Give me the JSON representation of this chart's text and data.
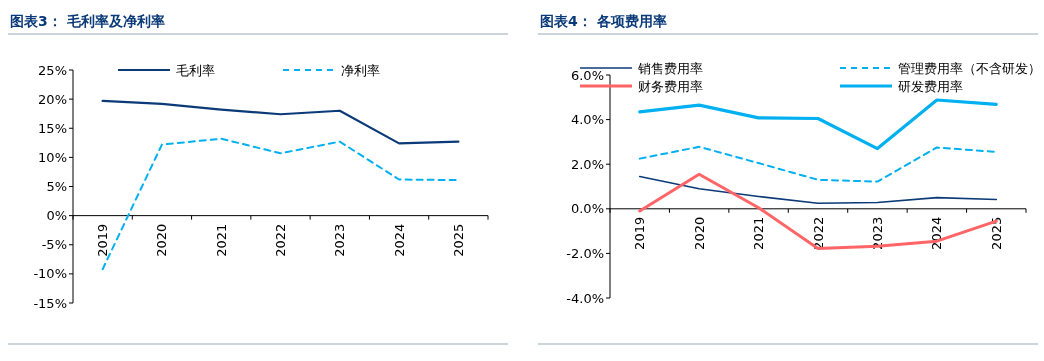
{
  "chart_data": [
    {
      "type": "line",
      "title": "图表3：  毛利率及净利率",
      "categories": [
        "2019",
        "2020",
        "2021",
        "2022",
        "2023",
        "2024",
        "2025"
      ],
      "ylim": [
        -15,
        25
      ],
      "yticks": [
        {
          "value": -15,
          "label": "-15%"
        },
        {
          "value": -10,
          "label": "-10%"
        },
        {
          "value": -5,
          "label": "-5%"
        },
        {
          "value": 0,
          "label": "0%"
        },
        {
          "value": 5,
          "label": "5%"
        },
        {
          "value": 10,
          "label": "10%"
        },
        {
          "value": 15,
          "label": "15%"
        },
        {
          "value": 20,
          "label": "20%"
        },
        {
          "value": 25,
          "label": "25%"
        }
      ],
      "legend": "top",
      "grid": false,
      "series": [
        {
          "name": "毛利率",
          "color": "#0b3a78",
          "line_style": "solid",
          "values": [
            19.7,
            19.2,
            18.2,
            17.4,
            18.0,
            12.4,
            12.7
          ]
        },
        {
          "name": "净利率",
          "color": "#00b0f0",
          "line_style": "dashed",
          "values": [
            -9.2,
            12.2,
            13.2,
            10.7,
            12.7,
            6.2,
            6.1
          ]
        }
      ]
    },
    {
      "type": "line",
      "title": "图表4：  各项费用率",
      "categories": [
        "2019",
        "2020",
        "2021",
        "2022",
        "2023",
        "2024",
        "2025"
      ],
      "ylim": [
        -4,
        6
      ],
      "yticks": [
        {
          "value": -4,
          "label": "-4.0%"
        },
        {
          "value": -2,
          "label": "-2.0%"
        },
        {
          "value": 0,
          "label": "0.0%"
        },
        {
          "value": 2,
          "label": "2.0%"
        },
        {
          "value": 4,
          "label": "4.0%"
        },
        {
          "value": 6,
          "label": "6.0%"
        }
      ],
      "legend": "top",
      "grid": false,
      "series": [
        {
          "name": "销售费用率",
          "color": "#0b3a78",
          "line_style": "solid",
          "values": [
            1.45,
            0.9,
            0.55,
            0.25,
            0.28,
            0.5,
            0.42
          ]
        },
        {
          "name": "管理费用率（不含研发）",
          "color": "#00b0f0",
          "line_style": "dashed",
          "values": [
            2.25,
            2.78,
            2.05,
            1.3,
            1.22,
            2.75,
            2.55
          ]
        },
        {
          "name": "财务费用率",
          "color": "#ff6467",
          "line_style": "solid",
          "values": [
            -0.1,
            1.55,
            0.05,
            -1.78,
            -1.68,
            -1.45,
            -0.55
          ]
        },
        {
          "name": "研发费用率",
          "color": "#00b0f0",
          "line_style": "solid",
          "values": [
            4.35,
            4.65,
            4.08,
            4.05,
            2.7,
            4.88,
            4.68
          ]
        }
      ]
    }
  ]
}
